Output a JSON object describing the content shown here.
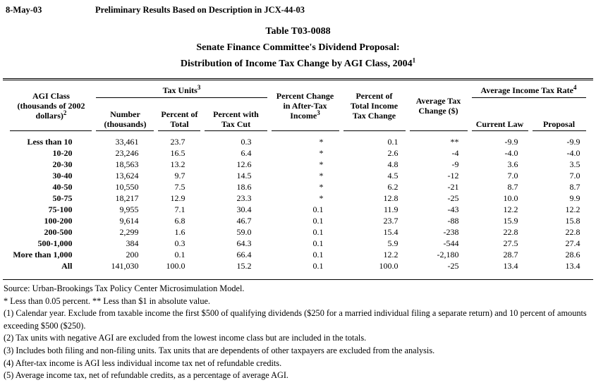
{
  "page_header": {
    "date": "8-May-03",
    "preliminary": "Preliminary Results Based on Description in JCX-44-03"
  },
  "title": {
    "line1": "Table T03-0088",
    "line2": "Senate Finance Committee's Dividend Proposal:",
    "line3": "Distribution of Income Tax Change by AGI Class, 2004",
    "line3_sup": "1"
  },
  "table": {
    "header": {
      "agi_class": {
        "lines": [
          "AGI Class",
          "(thousands of 2002"
        ],
        "last_line": "dollars)",
        "sup": "2"
      },
      "tax_units_group": {
        "text": "Tax Units",
        "sup": "3"
      },
      "number": {
        "lines": [
          "Number",
          "(thousands)"
        ]
      },
      "percent_of_total": {
        "lines": [
          "Percent of",
          "Total"
        ]
      },
      "percent_with_tax_cut": {
        "lines": [
          "Percent with",
          "Tax Cut"
        ]
      },
      "pct_change_after_tax": {
        "lines": [
          "Percent Change",
          "in After-Tax"
        ],
        "last_line": "Income",
        "sup": "3"
      },
      "pct_of_total_income_tax_change": {
        "lines": [
          "Percent of",
          "Total Income",
          "Tax Change"
        ]
      },
      "average_tax_change": {
        "lines": [
          "Average Tax",
          "Change ($)"
        ]
      },
      "avg_income_tax_rate_group": {
        "text": "Average Income Tax Rate",
        "sup": "4"
      },
      "current_law": "Current Law",
      "proposal": "Proposal"
    },
    "col_keys": [
      "number-thousands",
      "percent-of-total",
      "percent-with-tax-cut",
      "pct-change-after-tax-income",
      "pct-of-total-income-tax-change",
      "average-tax-change",
      "current-law",
      "proposal"
    ],
    "rows": [
      {
        "label": "Less than 10",
        "values": [
          "33,461",
          "23.7",
          "0.3",
          "*",
          "0.1",
          "**",
          "-9.9",
          "-9.9"
        ]
      },
      {
        "label": "10-20",
        "values": [
          "23,246",
          "16.5",
          "6.4",
          "*",
          "2.6",
          "-4",
          "-4.0",
          "-4.0"
        ]
      },
      {
        "label": "20-30",
        "values": [
          "18,563",
          "13.2",
          "12.6",
          "*",
          "4.8",
          "-9",
          "3.6",
          "3.5"
        ]
      },
      {
        "label": "30-40",
        "values": [
          "13,624",
          "9.7",
          "14.5",
          "*",
          "4.5",
          "-12",
          "7.0",
          "7.0"
        ]
      },
      {
        "label": "40-50",
        "values": [
          "10,550",
          "7.5",
          "18.6",
          "*",
          "6.2",
          "-21",
          "8.7",
          "8.7"
        ]
      },
      {
        "label": "50-75",
        "values": [
          "18,217",
          "12.9",
          "23.3",
          "*",
          "12.8",
          "-25",
          "10.0",
          "9.9"
        ]
      },
      {
        "label": "75-100",
        "values": [
          "9,955",
          "7.1",
          "30.4",
          "0.1",
          "11.9",
          "-43",
          "12.2",
          "12.2"
        ]
      },
      {
        "label": "100-200",
        "values": [
          "9,614",
          "6.8",
          "46.7",
          "0.1",
          "23.7",
          "-88",
          "15.9",
          "15.8"
        ]
      },
      {
        "label": "200-500",
        "values": [
          "2,299",
          "1.6",
          "59.0",
          "0.1",
          "15.4",
          "-238",
          "22.8",
          "22.8"
        ]
      },
      {
        "label": "500-1,000",
        "values": [
          "384",
          "0.3",
          "64.3",
          "0.1",
          "5.9",
          "-544",
          "27.5",
          "27.4"
        ]
      },
      {
        "label": "More than 1,000",
        "values": [
          "200",
          "0.1",
          "66.4",
          "0.1",
          "12.2",
          "-2,180",
          "28.7",
          "28.6"
        ]
      },
      {
        "label": "All",
        "values": [
          "141,030",
          "100.0",
          "15.2",
          "0.1",
          "100.0",
          "-25",
          "13.4",
          "13.4"
        ]
      }
    ]
  },
  "notes": [
    "Source: Urban-Brookings Tax Policy Center Microsimulation Model.",
    "* Less than 0.05 percent.  ** Less than $1 in absolute value.",
    "(1) Calendar year. Exclude from taxable income the first $500 of qualifying dividends ($250 for a married individual filing a separate return) and 10 percent of amounts exceeding $500 ($250).",
    "(2) Tax units with negative AGI are excluded from the lowest income class but are included in the totals.",
    "(3) Includes both filing and non-filing units.  Tax units that are dependents of other taxpayers are excluded from the analysis.",
    "(4) After-tax income is AGI less individual income tax net of refundable credits.",
    "(5) Average income tax, net of refundable credits, as a percentage of average AGI."
  ]
}
